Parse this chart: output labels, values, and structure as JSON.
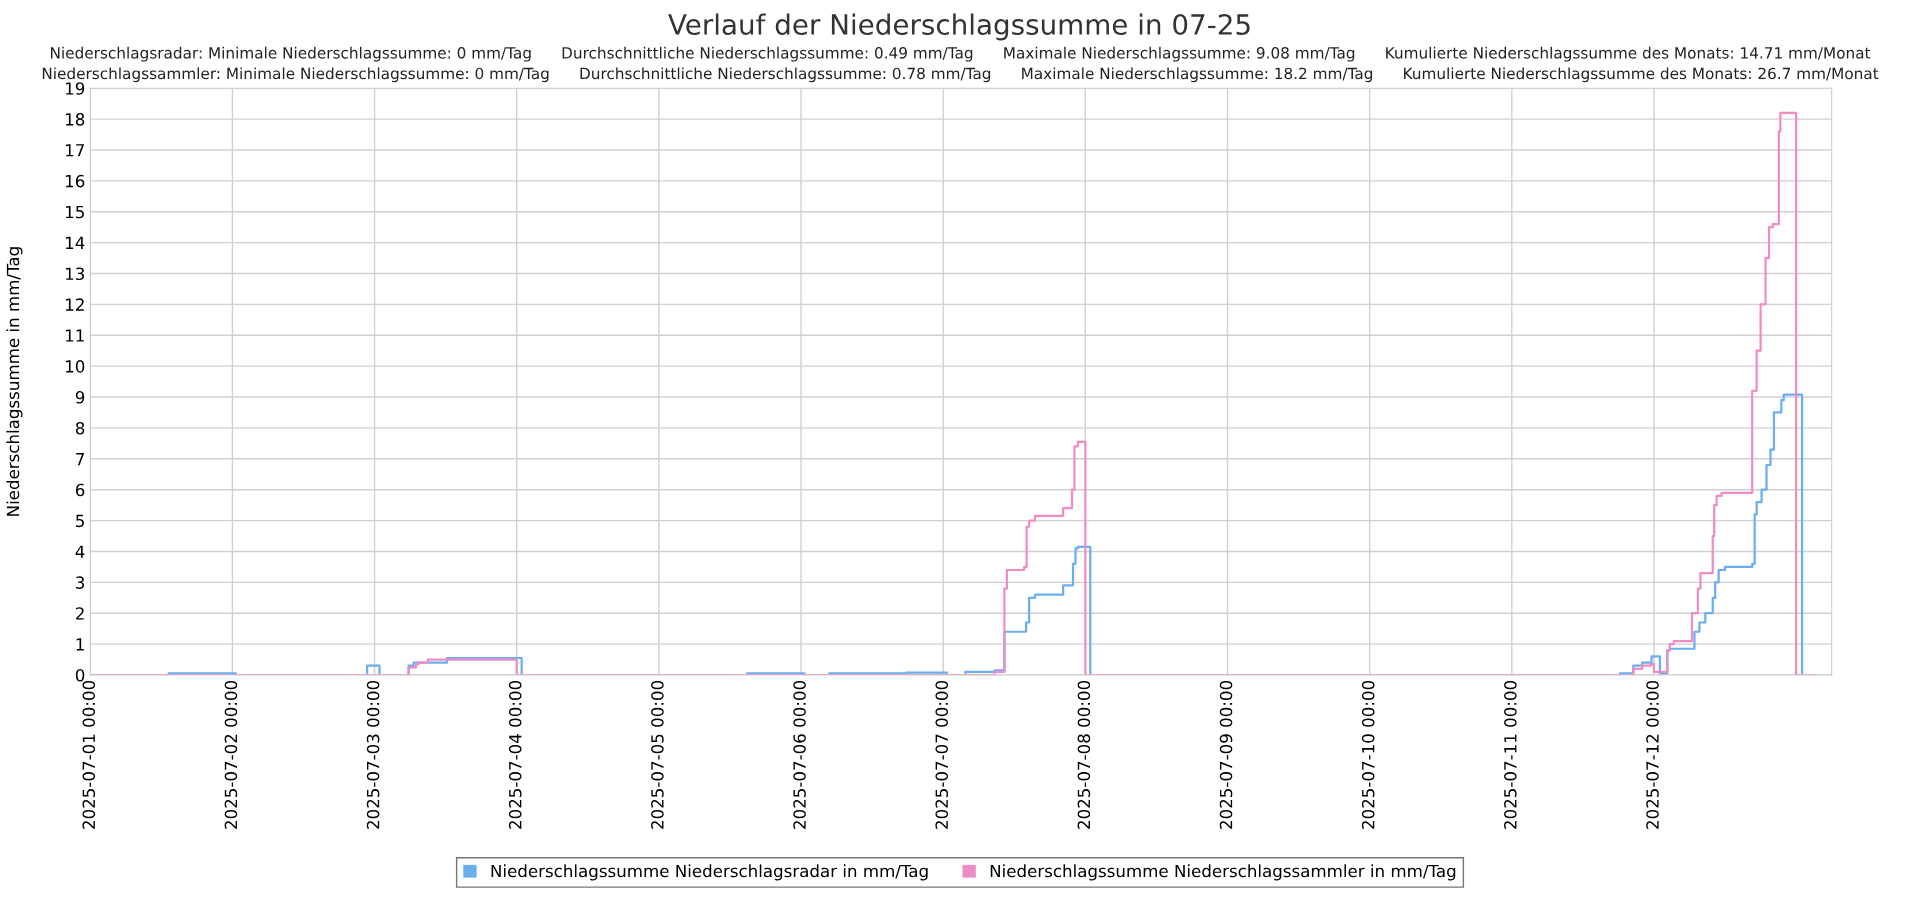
{
  "chart_data": {
    "type": "step",
    "title": "Verlauf der Niederschlagssumme in 07-25",
    "subtitle": "Niederschlagsradar: Minimale Niederschlagssumme: 0 mm/Tag      Durchschnittliche Niederschlagssumme: 0.49 mm/Tag      Maximale Niederschlagssumme: 9.08 mm/Tag      Kumulierte Niederschlagssumme des Monats: 14.71 mm/Monat\nNiederschlagssammler: Minimale Niederschlagssumme: 0 mm/Tag      Durchschnittliche Niederschlagssumme: 0.78 mm/Tag      Maximale Niederschlagssumme: 18.2 mm/Tag      Kumulierte Niederschlagssumme des Monats: 26.7 mm/Monat",
    "ylabel": "Niederschlagssumme in mm/Tag",
    "xlim": [
      "2025-07-01T00:00",
      "2025-07-13T06:00"
    ],
    "ylim": [
      0,
      19
    ],
    "xticks": [
      {
        "value": "2025-07-01T00:00",
        "label": "2025-07-01 00:00"
      },
      {
        "value": "2025-07-02T00:00",
        "label": "2025-07-02 00:00"
      },
      {
        "value": "2025-07-03T00:00",
        "label": "2025-07-03 00:00"
      },
      {
        "value": "2025-07-04T00:00",
        "label": "2025-07-04 00:00"
      },
      {
        "value": "2025-07-05T00:00",
        "label": "2025-07-05 00:00"
      },
      {
        "value": "2025-07-06T00:00",
        "label": "2025-07-06 00:00"
      },
      {
        "value": "2025-07-07T00:00",
        "label": "2025-07-07 00:00"
      },
      {
        "value": "2025-07-08T00:00",
        "label": "2025-07-08 00:00"
      },
      {
        "value": "2025-07-09T00:00",
        "label": "2025-07-09 00:00"
      },
      {
        "value": "2025-07-10T00:00",
        "label": "2025-07-10 00:00"
      },
      {
        "value": "2025-07-11T00:00",
        "label": "2025-07-11 00:00"
      },
      {
        "value": "2025-07-12T00:00",
        "label": "2025-07-12 00:00"
      }
    ],
    "yticks": [
      0,
      1,
      2,
      3,
      4,
      5,
      6,
      7,
      8,
      9,
      10,
      11,
      12,
      13,
      14,
      15,
      16,
      17,
      18,
      19
    ],
    "grid": true,
    "legend": "bottom",
    "line_style": "solid",
    "series": [
      {
        "name": "Niederschlagssumme Niederschlagsradar in mm/Tag",
        "color": "#6aaef0",
        "x": [
          "2025-07-01T00:00",
          "2025-07-01T13:15",
          "2025-07-02T00:35",
          "2025-07-02T22:45",
          "2025-07-03T00:50",
          "2025-07-03T05:45",
          "2025-07-03T06:35",
          "2025-07-03T12:15",
          "2025-07-04T00:50",
          "2025-07-05T14:55",
          "2025-07-06T00:35",
          "2025-07-06T04:45",
          "2025-07-06T17:45",
          "2025-07-07T00:35",
          "2025-07-07T03:45",
          "2025-07-07T08:40",
          "2025-07-07T10:20",
          "2025-07-07T14:00",
          "2025-07-07T14:30",
          "2025-07-07T15:30",
          "2025-07-07T20:15",
          "2025-07-07T21:55",
          "2025-07-07T22:20",
          "2025-07-07T22:45",
          "2025-07-08T00:50",
          "2025-07-11T18:15",
          "2025-07-11T20:30",
          "2025-07-11T22:00",
          "2025-07-11T23:35",
          "2025-07-12T01:00",
          "2025-07-12T02:15",
          "2025-07-12T02:40",
          "2025-07-12T06:50",
          "2025-07-12T07:40",
          "2025-07-12T08:40",
          "2025-07-12T09:55",
          "2025-07-12T10:20",
          "2025-07-12T10:55",
          "2025-07-12T12:00",
          "2025-07-12T16:35",
          "2025-07-12T17:00",
          "2025-07-12T17:20",
          "2025-07-12T18:10",
          "2025-07-12T19:00",
          "2025-07-12T19:40",
          "2025-07-12T20:15",
          "2025-07-12T21:30",
          "2025-07-12T21:55",
          "2025-07-12T22:30",
          "2025-07-13T01:00",
          "2025-07-13T03:00"
        ],
        "values": [
          0,
          0.05,
          0,
          0.3,
          0,
          0.3,
          0.4,
          0.55,
          0,
          0.05,
          0,
          0.05,
          0.08,
          0,
          0.1,
          0.15,
          1.4,
          1.7,
          2.5,
          2.6,
          2.9,
          3.6,
          4.1,
          4.15,
          0,
          0.05,
          0.3,
          0.4,
          0.6,
          0.05,
          0.8,
          0.85,
          1.4,
          1.7,
          2.0,
          2.5,
          3.0,
          3.4,
          3.5,
          3.6,
          5.2,
          5.6,
          6.0,
          6.8,
          7.3,
          8.5,
          8.9,
          9.08,
          9.08,
          0,
          0
        ]
      },
      {
        "name": "Niederschlagssumme Niederschlagssammler in mm/Tag",
        "color": "#f08cc4",
        "x": [
          "2025-07-01T00:00",
          "2025-07-03T05:45",
          "2025-07-03T07:00",
          "2025-07-03T07:25",
          "2025-07-03T09:00",
          "2025-07-04T00:00",
          "2025-07-07T08:40",
          "2025-07-07T10:20",
          "2025-07-07T10:45",
          "2025-07-07T13:40",
          "2025-07-07T14:05",
          "2025-07-07T14:30",
          "2025-07-07T15:30",
          "2025-07-07T20:15",
          "2025-07-07T21:45",
          "2025-07-07T22:10",
          "2025-07-07T22:45",
          "2025-07-08T00:00",
          "2025-07-11T20:30",
          "2025-07-11T22:00",
          "2025-07-11T23:25",
          "2025-07-12T00:00",
          "2025-07-12T02:15",
          "2025-07-12T02:40",
          "2025-07-12T03:20",
          "2025-07-12T06:25",
          "2025-07-12T07:25",
          "2025-07-12T07:50",
          "2025-07-12T09:55",
          "2025-07-12T10:10",
          "2025-07-12T10:35",
          "2025-07-12T11:25",
          "2025-07-12T16:35",
          "2025-07-12T17:20",
          "2025-07-12T18:00",
          "2025-07-12T18:50",
          "2025-07-12T19:25",
          "2025-07-12T20:05",
          "2025-07-12T21:05",
          "2025-07-12T21:20",
          "2025-07-12T22:10",
          "2025-07-13T00:00",
          "2025-07-13T03:00"
        ],
        "values": [
          0,
          0.25,
          0.35,
          0.4,
          0.5,
          0,
          0.1,
          2.8,
          3.4,
          3.5,
          4.8,
          5.0,
          5.15,
          5.4,
          6.0,
          7.4,
          7.55,
          0,
          0.2,
          0.3,
          0.35,
          0.1,
          0.8,
          1.0,
          1.1,
          2.0,
          2.8,
          3.3,
          4.5,
          5.5,
          5.8,
          5.9,
          9.2,
          10.5,
          12.0,
          13.5,
          14.5,
          14.6,
          17.6,
          18.2,
          18.2,
          0,
          0
        ]
      }
    ]
  }
}
